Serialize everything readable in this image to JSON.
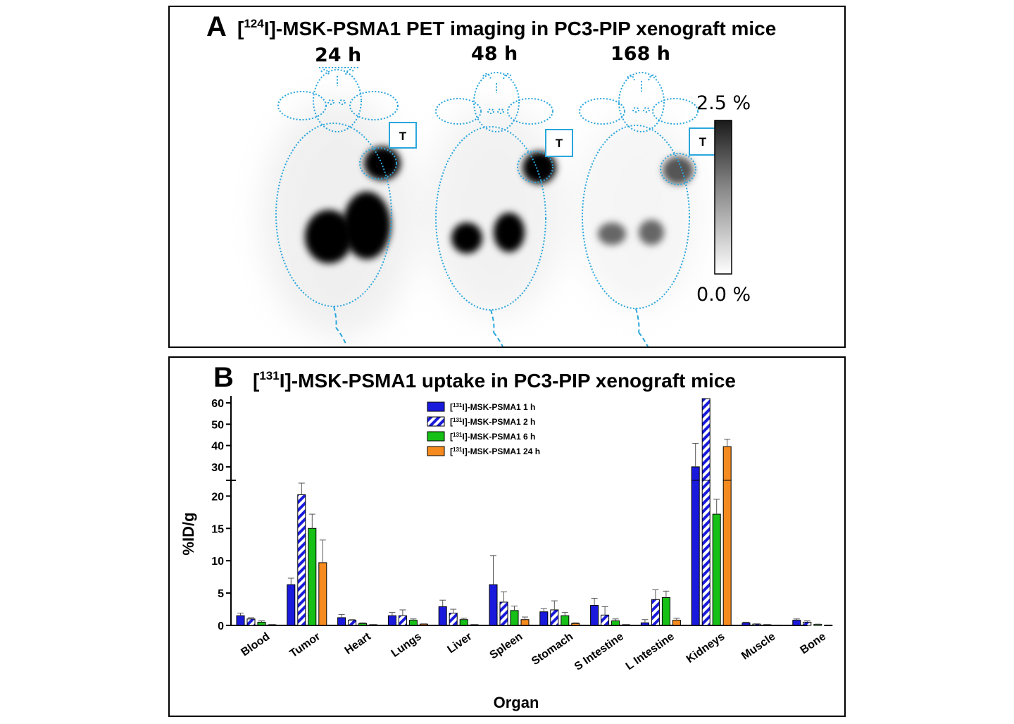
{
  "panel_a": {
    "letter": "A",
    "title_prefix": "[",
    "title_sup": "124",
    "title_rest": "I]-MSK-PSMA1 PET imaging in PC3-PIP xenograft mice",
    "timepoints": [
      "24 h",
      "48 h",
      "168 h"
    ],
    "tumor_marker": "T",
    "scale_max": "2.5 %",
    "scale_min": "0.0 %"
  },
  "panel_b": {
    "letter": "B",
    "title_prefix": "[",
    "title_sup": "131",
    "title_rest": "I]-MSK-PSMA1 uptake in PC3-PIP xenograft mice"
  },
  "chart_data": {
    "type": "bar",
    "title": "[131I]-MSK-PSMA1 uptake in PC3-PIP xenograft mice",
    "xlabel": "Organ",
    "ylabel": "%ID/g",
    "y_axis_break": {
      "lower_range": [
        0,
        22
      ],
      "upper_range": [
        25,
        62
      ]
    },
    "lower_ticks": [
      0,
      5,
      10,
      15,
      20
    ],
    "upper_ticks": [
      30,
      40,
      50,
      60
    ],
    "categories": [
      "Blood",
      "Tumor",
      "Heart",
      "Lungs",
      "Liver",
      "Spleen",
      "Stomach",
      "S Intestine",
      "L Intestine",
      "Kidneys",
      "Muscle",
      "Bone"
    ],
    "legend_prefix": "[",
    "legend_sup": "131",
    "series": [
      {
        "name": "[131I]-MSK-PSMA1  1 h",
        "label": "I]-MSK-PSMA1  1 h",
        "fill": "#1a1adc",
        "pattern": "solid",
        "values": [
          1.5,
          6.3,
          1.2,
          1.5,
          2.9,
          6.3,
          2.1,
          3.1,
          0.4,
          30,
          0.4,
          0.8
        ],
        "errors": [
          0.4,
          1.0,
          0.5,
          0.5,
          1.0,
          4.5,
          0.5,
          1.1,
          0.5,
          11,
          0.1,
          0.2
        ]
      },
      {
        "name": "[131I]-MSK-PSMA1  2 h",
        "label": "I]-MSK-PSMA1  2 h",
        "fill": "#1a1adc",
        "pattern": "hatched",
        "values": [
          1.0,
          20.2,
          0.8,
          1.5,
          1.9,
          3.6,
          2.4,
          1.6,
          4.0,
          65,
          0.2,
          0.5
        ],
        "errors": [
          0.2,
          1.8,
          0.1,
          0.9,
          0.6,
          1.6,
          1.4,
          1.3,
          1.5,
          0,
          0.05,
          0.2
        ]
      },
      {
        "name": "[131I]-MSK-PSMA1  6 h",
        "label": "I]-MSK-PSMA1  6 h",
        "fill": "#16c016",
        "pattern": "solid",
        "values": [
          0.5,
          15.0,
          0.3,
          0.8,
          0.9,
          2.3,
          1.5,
          0.7,
          4.3,
          17.2,
          0.1,
          0.15
        ],
        "errors": [
          0.2,
          2.2,
          0.1,
          0.2,
          0.2,
          0.7,
          0.5,
          0.3,
          1.0,
          2.3,
          0.05,
          0.05
        ]
      },
      {
        "name": "[131I]-MSK-PSMA1  24 h",
        "label": "I]-MSK-PSMA1  24 h",
        "fill": "#f58a1e",
        "pattern": "solid",
        "values": [
          0.1,
          9.7,
          0.1,
          0.2,
          0.1,
          0.9,
          0.3,
          0.1,
          0.8,
          39.5,
          0.05,
          0.05
        ],
        "errors": [
          0.05,
          3.5,
          0.05,
          0.05,
          0.05,
          0.4,
          0.1,
          0.05,
          0.3,
          3.5,
          0.02,
          0.02
        ]
      }
    ]
  }
}
